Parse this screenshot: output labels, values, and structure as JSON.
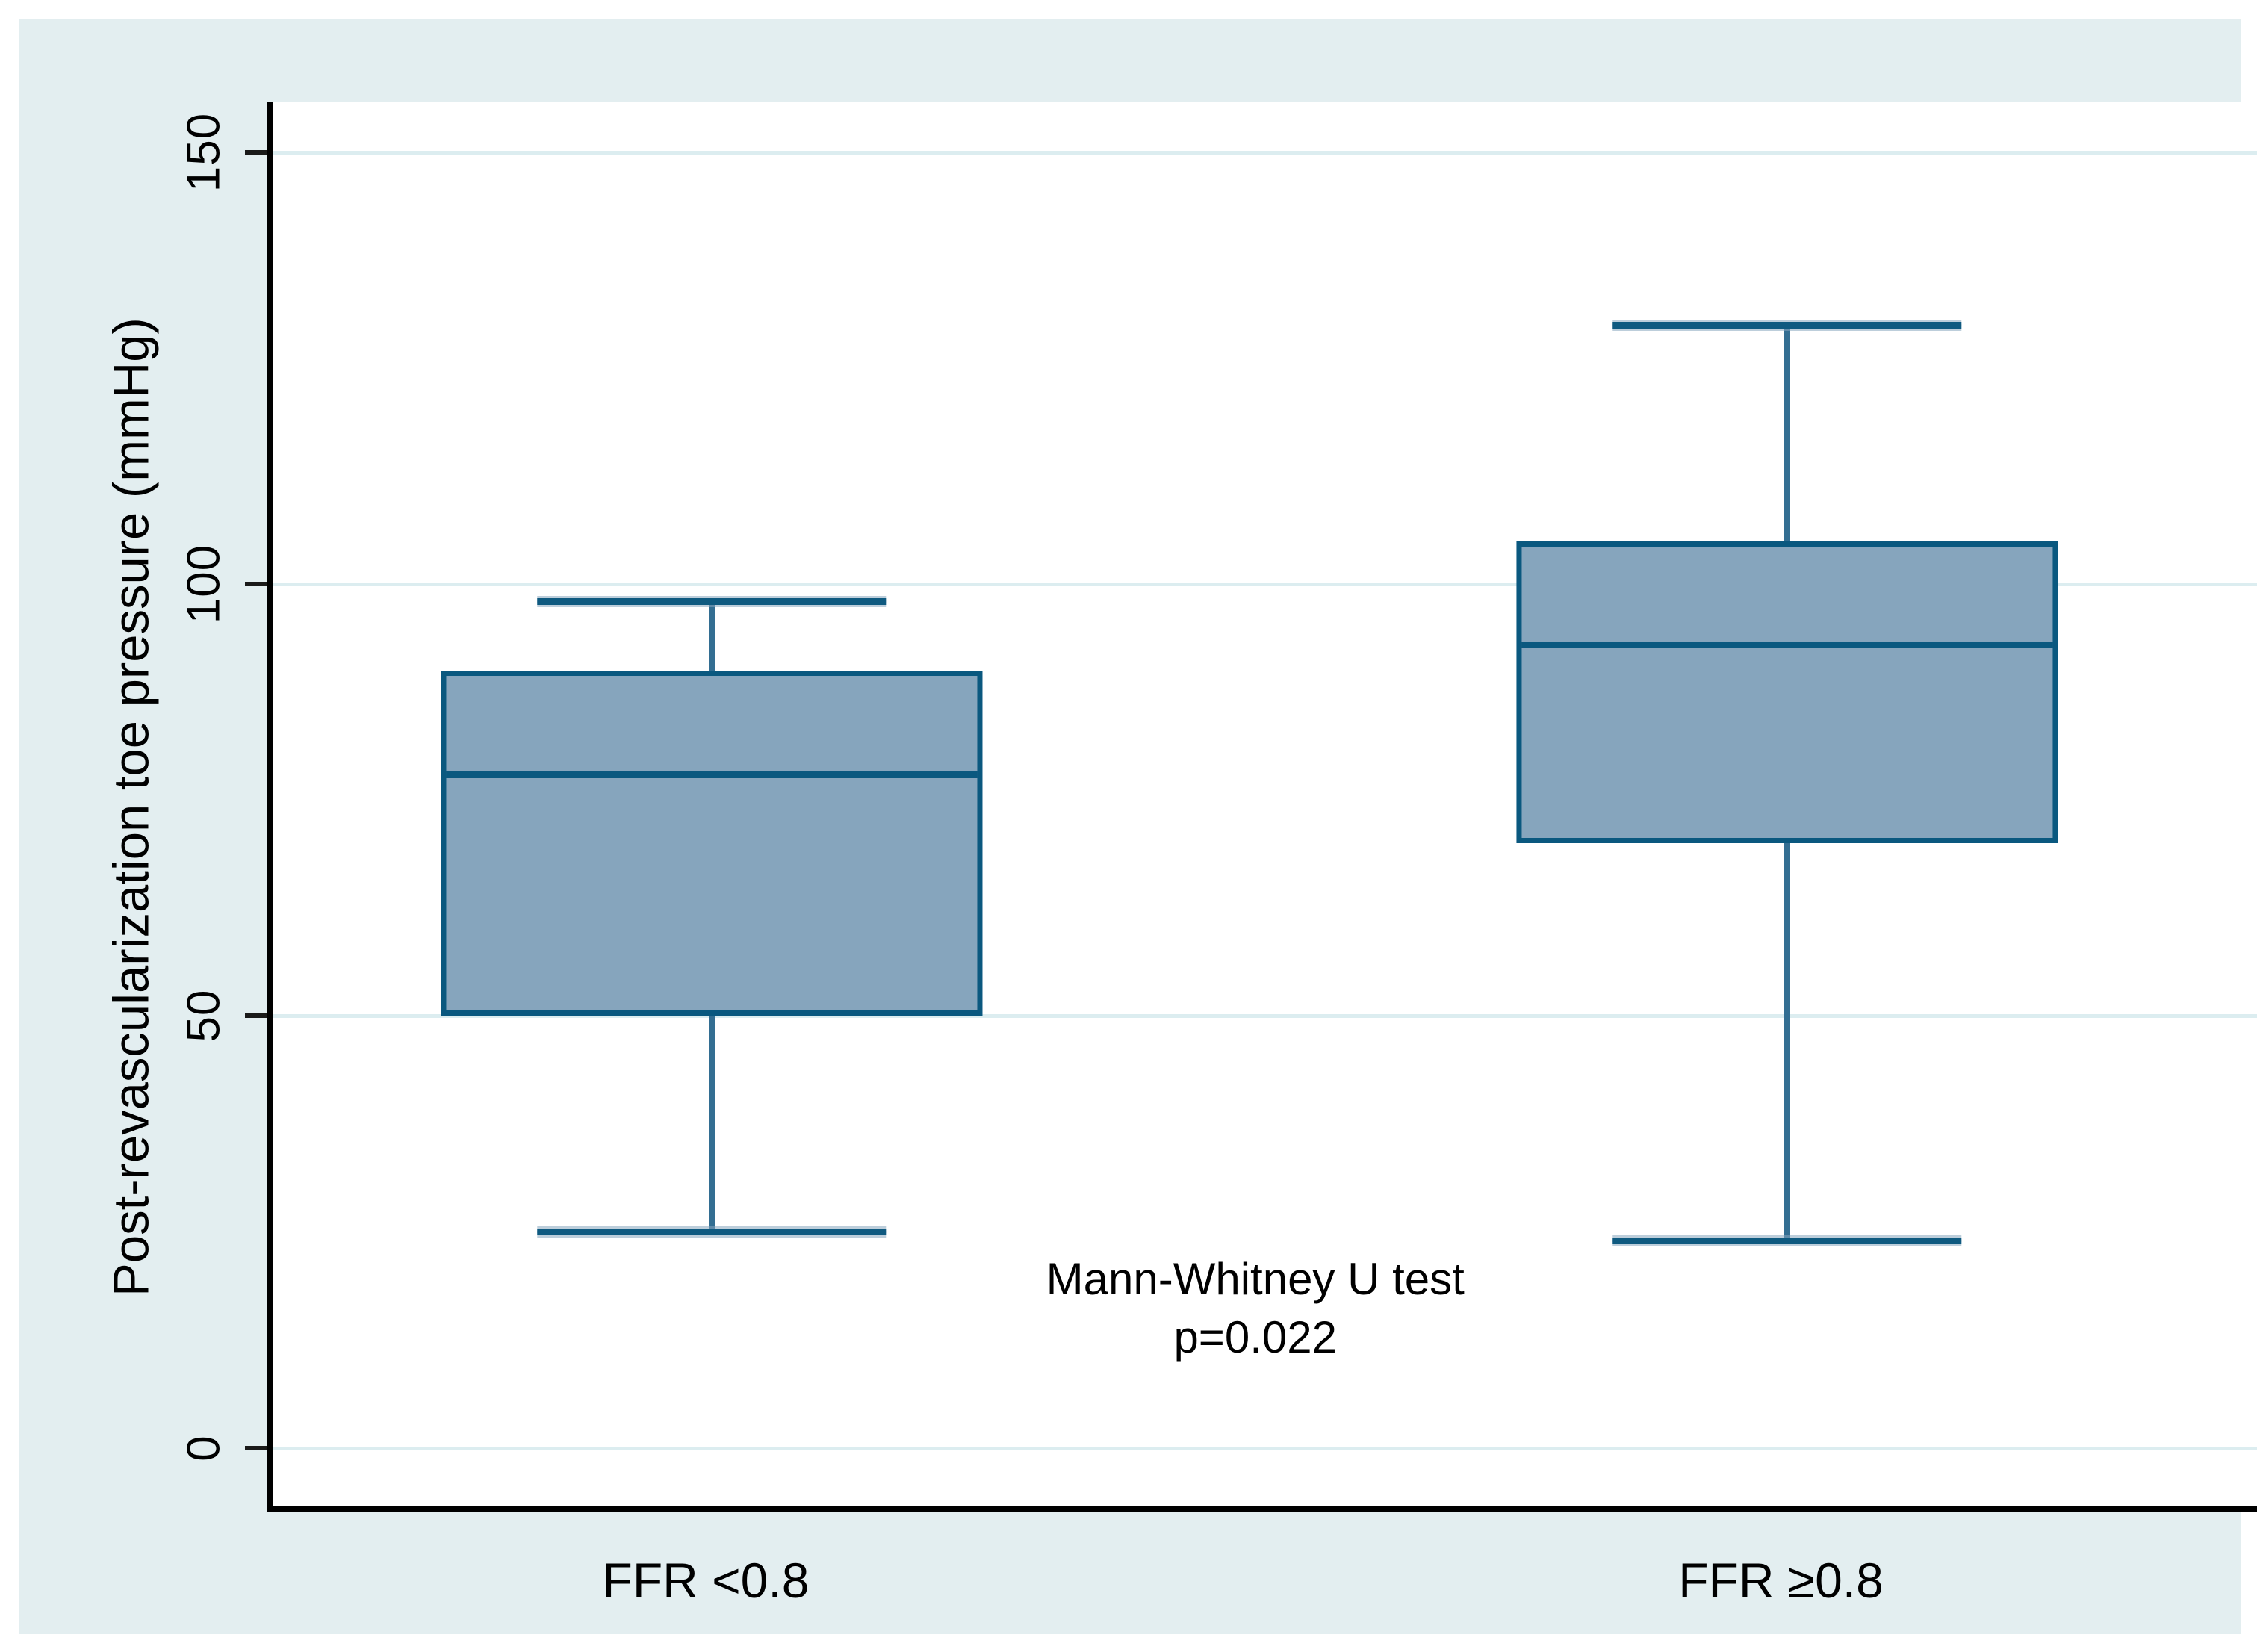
{
  "figure": {
    "background_color": "#E3EEF0",
    "plot_background_color": "#FFFFFF",
    "gridline_color": "#DCEDF0",
    "axis_color": "#000000",
    "box_fill_color": "#86A5BD",
    "box_border_color": "#0A587F",
    "whisker_color": "#336E92",
    "text_color": "#000000"
  },
  "y_axis": {
    "title": "Post-revascularization toe pressure (mmHg)",
    "tick_labels": [
      "0",
      "50",
      "100",
      "150"
    ]
  },
  "x_axis": {
    "categories": [
      "FFR <0.8",
      "FFR ≥0.8"
    ]
  },
  "annotation": {
    "line1": "Mann-Whitney U test",
    "line2": "p=0.022"
  },
  "chart_data": {
    "type": "boxplot",
    "title": "",
    "xlabel": "",
    "ylabel": "Post-revascularization toe pressure (mmHg)",
    "categories": [
      "FFR <0.8",
      "FFR ≥0.8"
    ],
    "series": [
      {
        "name": "FFR <0.8",
        "whisker_low": 25,
        "q1": 50,
        "median": 78,
        "q3": 90,
        "whisker_high": 98
      },
      {
        "name": "FFR ≥0.8",
        "whisker_low": 24,
        "q1": 70,
        "median": 93,
        "q3": 105,
        "whisker_high": 130
      }
    ],
    "yticks": [
      0,
      50,
      100,
      150
    ],
    "ylim": [
      -6.7,
      155.9
    ],
    "grid": true,
    "legend": false,
    "annotation": "Mann-Whitney U test p=0.022",
    "layout": {
      "centers_pct": [
        22.1,
        76.3
      ],
      "box_width_pct": 27.3,
      "cap_width_pct": 17.6
    }
  }
}
